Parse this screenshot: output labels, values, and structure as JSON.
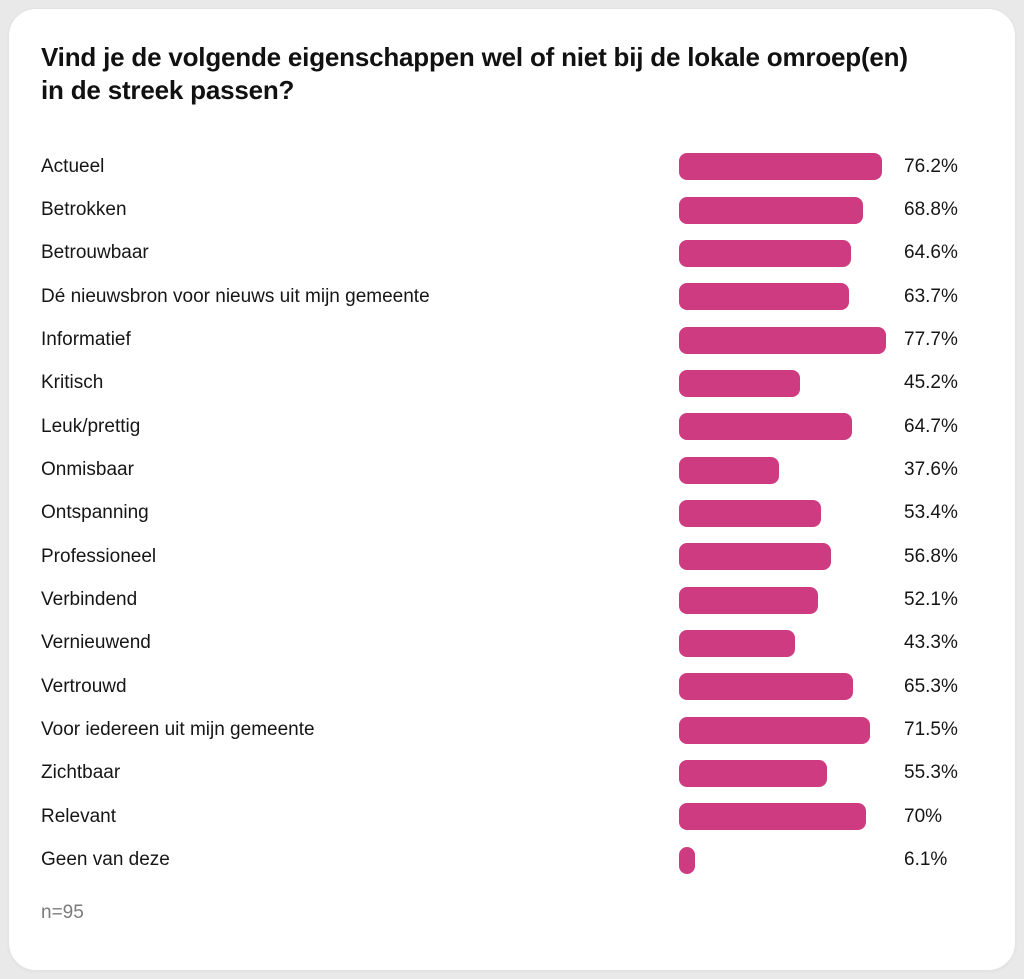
{
  "card": {
    "title": "Vind je de volgende eigenschappen wel of niet bij de lokale omroep(en) in de streek passen?",
    "footnote": "n=95"
  },
  "chart_data": {
    "type": "bar",
    "orientation": "horizontal",
    "title": "Vind je de volgende eigenschappen wel of niet bij de lokale omroep(en) in de streek passen?",
    "xlabel": "",
    "ylabel": "",
    "xlim": [
      0,
      100
    ],
    "grid": false,
    "legend": "none",
    "bar_color": "#ce3b80",
    "categories": [
      "Actueel",
      "Betrokken",
      "Betrouwbaar",
      "Dé nieuwsbron voor nieuws uit mijn gemeente",
      "Informatief",
      "Kritisch",
      "Leuk/prettig",
      "Onmisbaar",
      "Ontspanning",
      "Professioneel",
      "Verbindend",
      "Vernieuwend",
      "Vertrouwd",
      "Voor iedereen uit mijn gemeente",
      "Zichtbaar",
      "Relevant",
      "Geen van deze"
    ],
    "values": [
      76.2,
      68.8,
      64.6,
      63.7,
      77.7,
      45.2,
      64.7,
      37.6,
      53.4,
      56.8,
      52.1,
      43.3,
      65.3,
      71.5,
      55.3,
      70,
      6.1
    ],
    "value_labels": [
      "76.2%",
      "68.8%",
      "64.6%",
      "63.7%",
      "77.7%",
      "45.2%",
      "64.7%",
      "37.6%",
      "53.4%",
      "56.8%",
      "52.1%",
      "43.3%",
      "65.3%",
      "71.5%",
      "55.3%",
      "70%",
      "6.1%"
    ],
    "note": "n=95"
  }
}
